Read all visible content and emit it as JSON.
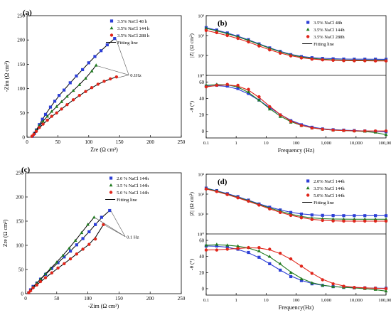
{
  "colors": {
    "blue": "#2d3fd6",
    "green": "#1f7a1f",
    "red": "#e0261b",
    "fit": "#000000",
    "black": "#000000"
  },
  "chart_data": [
    {
      "type": "scatter",
      "panel": "(a)",
      "xlabel": "Zre (Ω cm²)",
      "ylabel": "-Zim (Ω cm²)",
      "xlim": [
        0,
        250
      ],
      "ylim": [
        0,
        250
      ],
      "xticks": [
        "0",
        "50",
        "100",
        "150",
        "200",
        "250"
      ],
      "yticks": [
        "0",
        "50",
        "100",
        "150",
        "200",
        "250"
      ],
      "annotation": "0.1Hz",
      "legend_position": "top-right",
      "fit_label": "Fitting line",
      "series": [
        {
          "name": "3.5% NaCl 48 h",
          "color": "blue",
          "x": [
            9,
            12,
            15,
            20,
            25,
            30,
            38,
            45,
            52,
            60,
            70,
            80,
            90,
            100,
            110,
            120,
            130,
            142
          ],
          "y": [
            2,
            8,
            15,
            26,
            37,
            47,
            62,
            74,
            86,
            97,
            112,
            126,
            139,
            153,
            166,
            178,
            190,
            203
          ]
        },
        {
          "name": "3.5% NaCl 144 h",
          "color": "green",
          "x": [
            8,
            11,
            15,
            20,
            26,
            33,
            40,
            48,
            56,
            65,
            75,
            85,
            95,
            105,
            112
          ],
          "y": [
            2,
            7,
            15,
            24,
            33,
            43,
            53,
            63,
            73,
            84,
            96,
            108,
            121,
            136,
            148
          ]
        },
        {
          "name": "3.5% NaCl 288 h",
          "color": "red",
          "x": [
            8,
            11,
            15,
            20,
            26,
            33,
            40,
            48,
            56,
            65,
            75,
            85,
            95,
            105,
            115,
            125,
            135,
            145
          ],
          "y": [
            2,
            6,
            12,
            20,
            27,
            35,
            43,
            50,
            58,
            67,
            77,
            86,
            94,
            102,
            109,
            115,
            120,
            124
          ]
        }
      ]
    },
    {
      "type": "line",
      "panel": "(b)",
      "xlabel": "Frequency (Hz)",
      "xscale": "log",
      "xlim": [
        0.1,
        100000
      ],
      "xticks": [
        "0.1",
        "1",
        "10",
        "100",
        "1,000",
        "10,000",
        "100,000"
      ],
      "top": {
        "ylabel": "|Z| (Ω cm²)",
        "yscale": "log",
        "ylim": [
          1,
          1000
        ],
        "yticks": [
          "10⁰",
          "10¹",
          "10²",
          "10³"
        ]
      },
      "bottom": {
        "ylabel": "-θ (°)",
        "ylim": [
          -8,
          68
        ],
        "yticks": [
          "0",
          "20",
          "40",
          "60"
        ]
      },
      "legend_position": "top-right",
      "fit_label": "Fitting line",
      "series": [
        {
          "name": "3.5% NaCl 48h",
          "color": "blue",
          "modulus": [
            250,
            190,
            135,
            95,
            62,
            38,
            24,
            16,
            11,
            8.8,
            7.7,
            7.1,
            6.8,
            6.6,
            6.5,
            6.5,
            6.5,
            6.4
          ],
          "phase": [
            55,
            56,
            55,
            52,
            46,
            38,
            29,
            20,
            13,
            8,
            5,
            3,
            2,
            1.5,
            1,
            0.5,
            0,
            -0.5
          ]
        },
        {
          "name": "3.5% NaCl 144h",
          "color": "green",
          "modulus": [
            230,
            175,
            125,
            88,
            58,
            36,
            23,
            15,
            10.5,
            8.2,
            7.0,
            6.4,
            6.1,
            5.9,
            5.8,
            5.8,
            5.8,
            5.7
          ],
          "phase": [
            56,
            57,
            57,
            55,
            48,
            38,
            27,
            18,
            11,
            7,
            4,
            2.5,
            1.5,
            1,
            0.5,
            0,
            -1,
            -4
          ]
        },
        {
          "name": "3.5% NaCl 288h",
          "color": "red",
          "modulus": [
            180,
            140,
            100,
            72,
            48,
            30,
            19,
            13,
            9.5,
            7.5,
            6.5,
            6.0,
            5.7,
            5.5,
            5.4,
            5.4,
            5.3,
            5.3
          ],
          "phase": [
            54,
            56,
            57,
            56,
            51,
            42,
            30,
            20,
            12,
            7,
            4,
            2.5,
            1.5,
            1,
            0.5,
            0.5,
            0.5,
            0.5
          ]
        }
      ]
    },
    {
      "type": "scatter",
      "panel": "(c)",
      "xlabel": "-Zim (Ω cm²)",
      "ylabel": "Zre (Ω cm²)",
      "xlim": [
        0,
        250
      ],
      "ylim": [
        0,
        250
      ],
      "xticks": [
        "0",
        "50",
        "100",
        "150",
        "200",
        "250"
      ],
      "yticks": [
        "0",
        "50",
        "100",
        "150",
        "200",
        "250"
      ],
      "annotation": "0.1 Hz",
      "legend_position": "top-right",
      "fit_label": "Fitting line",
      "series": [
        {
          "name": "2.0 % NaCl 144h",
          "color": "blue",
          "x": [
            5,
            8,
            12,
            18,
            24,
            32,
            42,
            52,
            62,
            72,
            82,
            92,
            102,
            112,
            122,
            135
          ],
          "y": [
            2,
            8,
            15,
            22,
            30,
            40,
            52,
            64,
            76,
            88,
            101,
            114,
            128,
            143,
            158,
            172
          ]
        },
        {
          "name": "3.5 % NaCl 144h",
          "color": "green",
          "x": [
            5,
            8,
            12,
            18,
            24,
            32,
            40,
            50,
            60,
            70,
            80,
            90,
            100,
            110
          ],
          "y": [
            2,
            7,
            14,
            22,
            30,
            41,
            52,
            65,
            79,
            94,
            110,
            126,
            143,
            158
          ]
        },
        {
          "name": "5.0 % NaCl 144h",
          "color": "red",
          "x": [
            5,
            8,
            12,
            18,
            24,
            32,
            42,
            52,
            62,
            72,
            82,
            92,
            102,
            112,
            125
          ],
          "y": [
            2,
            6,
            12,
            18,
            25,
            33,
            43,
            53,
            62,
            72,
            82,
            92,
            102,
            113,
            143
          ]
        }
      ]
    },
    {
      "type": "line",
      "panel": "(d)",
      "xlabel": "Frequency(Hz)",
      "xscale": "log",
      "xlim": [
        0.1,
        100000
      ],
      "xticks": [
        "0.1",
        "1",
        "10",
        "100",
        "1,000",
        "10,000",
        "100,000"
      ],
      "top": {
        "ylabel": "|Z| (Ω cm²)",
        "yscale": "log",
        "ylim": [
          1,
          1000
        ],
        "yticks": [
          "10⁰",
          "10¹",
          "10²",
          "10³"
        ]
      },
      "bottom": {
        "ylabel": "-θ (°)",
        "ylim": [
          -8,
          68
        ],
        "yticks": [
          "0",
          "20",
          "40",
          "60"
        ]
      },
      "legend_position": "top-right",
      "fit_label": "Fitting line",
      "series": [
        {
          "name": "2.0% NaCl 144h",
          "color": "blue",
          "modulus": [
            200,
            150,
            105,
            75,
            50,
            32,
            22,
            16,
            12,
            10,
            9,
            8.6,
            8.4,
            8.3,
            8.3,
            8.3,
            8.3,
            8.3
          ],
          "phase": [
            53,
            53,
            52,
            49,
            45,
            39,
            31,
            23,
            15,
            10,
            6,
            4,
            2.5,
            1.5,
            1,
            1,
            0.5,
            0.5
          ]
        },
        {
          "name": "3.5% NaCl 144h",
          "color": "green",
          "modulus": [
            190,
            145,
            100,
            70,
            47,
            30,
            20,
            14,
            9.5,
            7.5,
            6.2,
            5.8,
            5.6,
            5.5,
            5.5,
            5.5,
            5.5,
            5.5
          ],
          "phase": [
            54,
            55,
            54,
            53,
            51,
            47,
            40,
            31,
            20,
            12,
            7,
            4,
            2.5,
            1.5,
            1,
            0,
            -1,
            -3
          ]
        },
        {
          "name": "5.0% NaCl 144h",
          "color": "red",
          "modulus": [
            180,
            135,
            95,
            65,
            44,
            28,
            18,
            12,
            8.5,
            6.5,
            5.3,
            4.8,
            4.5,
            4.4,
            4.4,
            4.4,
            4.4,
            4.4
          ],
          "phase": [
            48,
            48,
            49,
            50,
            51,
            51,
            49,
            44,
            37,
            28,
            19,
            11,
            6,
            3,
            1.5,
            1,
            0.5,
            0
          ]
        }
      ]
    }
  ]
}
